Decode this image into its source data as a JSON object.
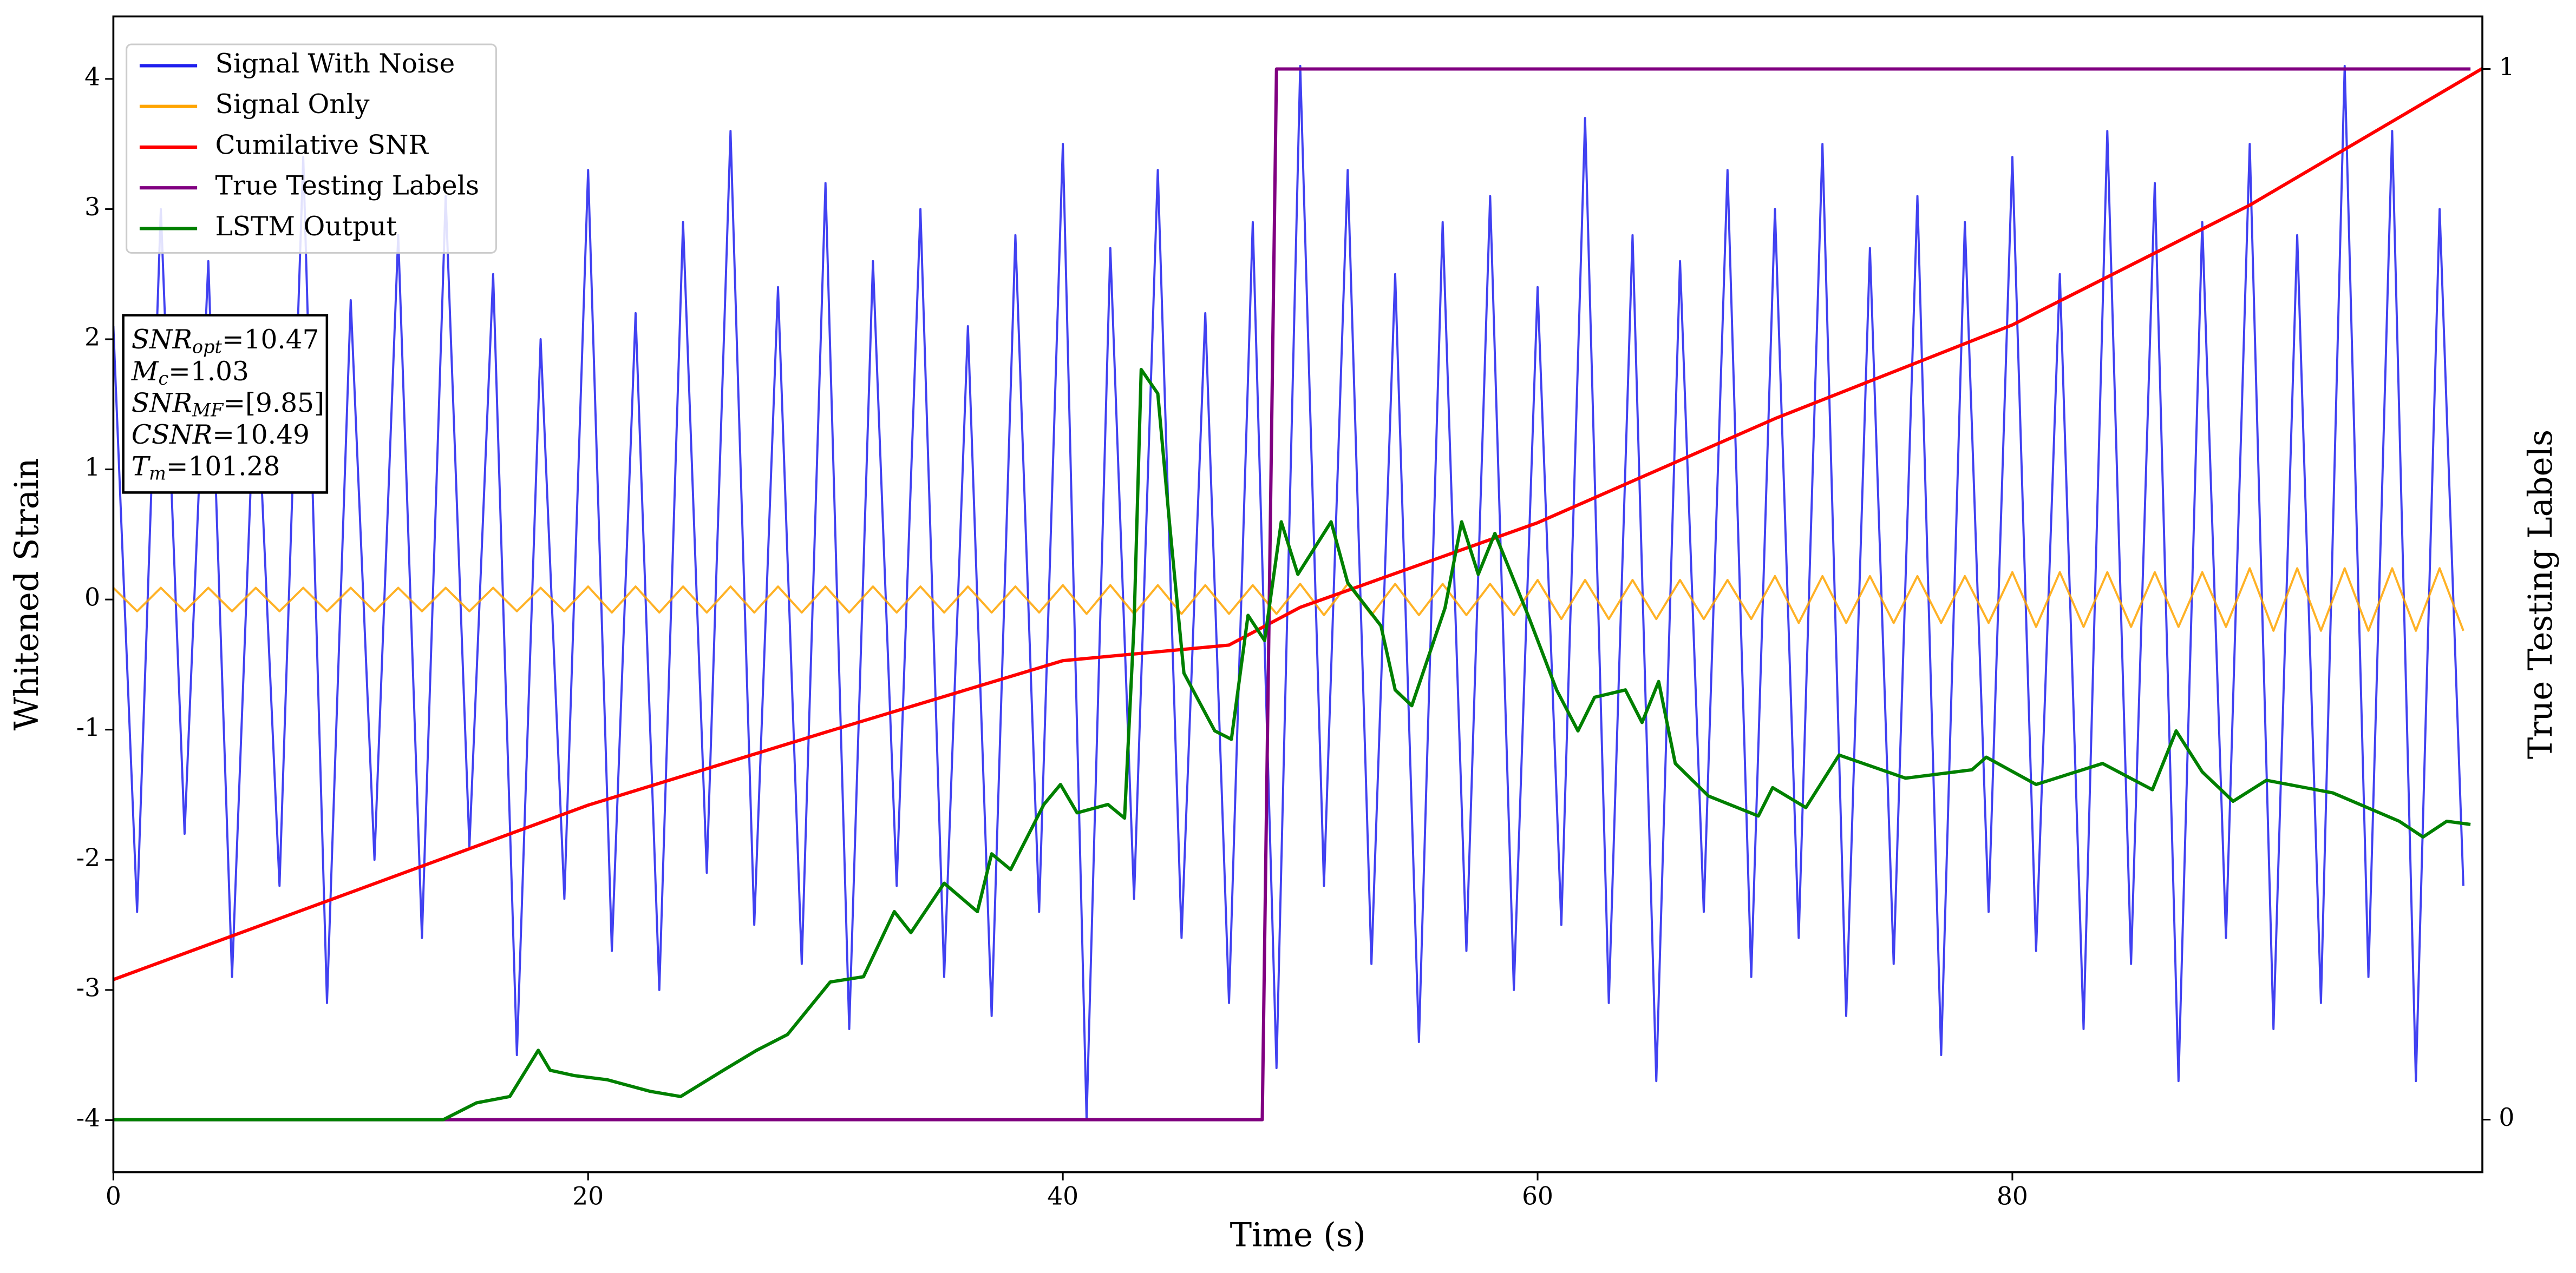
{
  "chart_data": {
    "type": "line",
    "x_label": "Time (s)",
    "y_label": "Whitened Strain",
    "y2_label": "True Testing Labels",
    "xlim": [
      0,
      99.8
    ],
    "ylim": [
      -4.4,
      4.48
    ],
    "y2lim": [
      -0.05,
      1.05
    ],
    "xticks": [
      0,
      20,
      40,
      60,
      80
    ],
    "yticks": [
      -4,
      -3,
      -2,
      -1,
      0,
      1,
      2,
      3,
      4
    ],
    "y2ticks": [
      0,
      1
    ],
    "legend": "upper left",
    "grid": false,
    "x": [
      0,
      1,
      2,
      3,
      4,
      5,
      6,
      7,
      8,
      9,
      10,
      11,
      12,
      13,
      14,
      15,
      16,
      17,
      18,
      19,
      20,
      21,
      22,
      23,
      24,
      25,
      26,
      27,
      28,
      29,
      30,
      31,
      32,
      33,
      34,
      35,
      36,
      37,
      38,
      39,
      40,
      41,
      42,
      43,
      44,
      45,
      46,
      47,
      48,
      49,
      50,
      51,
      52,
      53,
      54,
      55,
      56,
      57,
      58,
      59,
      60,
      61,
      62,
      63,
      64,
      65,
      66,
      67,
      68,
      69,
      70,
      71,
      72,
      73,
      74,
      75,
      76,
      77,
      78,
      79,
      80,
      81,
      82,
      83,
      84,
      85,
      86,
      87,
      88,
      89,
      90,
      91,
      92,
      93,
      94,
      95,
      96,
      97,
      98,
      99
    ],
    "series": [
      {
        "name": "Signal With Noise",
        "color": "#2020ee",
        "values": [
          2.1,
          -2.4,
          3.0,
          -1.8,
          2.6,
          -2.9,
          1.9,
          -2.2,
          3.4,
          -3.1,
          2.3,
          -2.0,
          2.8,
          -2.6,
          3.1,
          -1.9,
          2.5,
          -3.5,
          2.0,
          -2.3,
          3.3,
          -2.7,
          2.2,
          -3.0,
          2.9,
          -2.1,
          3.6,
          -2.5,
          2.4,
          -2.8,
          3.2,
          -3.3,
          2.6,
          -2.2,
          3.0,
          -2.9,
          2.1,
          -3.2,
          2.8,
          -2.4,
          3.5,
          -4.0,
          2.7,
          -2.3,
          3.3,
          -2.6,
          2.2,
          -3.1,
          2.9,
          -3.6,
          4.1,
          -2.2,
          3.3,
          -2.8,
          2.5,
          -3.4,
          2.9,
          -2.7,
          3.1,
          -3.0,
          2.4,
          -2.5,
          3.7,
          -3.1,
          2.8,
          -3.7,
          2.6,
          -2.4,
          3.3,
          -2.9,
          3.0,
          -2.6,
          3.5,
          -3.2,
          2.7,
          -2.8,
          3.1,
          -3.5,
          2.9,
          -2.4,
          3.4,
          -2.7,
          2.5,
          -3.3,
          3.6,
          -2.8,
          3.2,
          -3.7,
          2.9,
          -2.6,
          3.5,
          -3.3,
          2.8,
          -3.1,
          4.1,
          -2.9,
          3.6,
          -3.7,
          3.0,
          -2.2
        ]
      },
      {
        "name": "Signal Only",
        "color": "#ffa500",
        "values": [
          0.09,
          -0.09,
          0.09,
          -0.09,
          0.09,
          -0.09,
          0.09,
          -0.09,
          0.09,
          -0.09,
          0.09,
          -0.09,
          0.09,
          -0.09,
          0.09,
          -0.09,
          0.09,
          -0.09,
          0.09,
          -0.09,
          0.1,
          -0.1,
          0.1,
          -0.1,
          0.1,
          -0.1,
          0.1,
          -0.1,
          0.1,
          -0.1,
          0.1,
          -0.1,
          0.1,
          -0.1,
          0.1,
          -0.1,
          0.1,
          -0.1,
          0.1,
          -0.1,
          0.11,
          -0.11,
          0.11,
          -0.11,
          0.11,
          -0.11,
          0.11,
          -0.11,
          0.11,
          -0.11,
          0.12,
          -0.12,
          0.12,
          -0.12,
          0.12,
          -0.12,
          0.12,
          -0.12,
          0.12,
          -0.12,
          0.15,
          -0.15,
          0.15,
          -0.15,
          0.15,
          -0.15,
          0.15,
          -0.15,
          0.15,
          -0.15,
          0.18,
          -0.18,
          0.18,
          -0.18,
          0.18,
          -0.18,
          0.18,
          -0.18,
          0.18,
          -0.18,
          0.21,
          -0.21,
          0.21,
          -0.21,
          0.21,
          -0.21,
          0.21,
          -0.21,
          0.21,
          -0.21,
          0.24,
          -0.24,
          0.24,
          -0.24,
          0.24,
          -0.24,
          0.24,
          -0.24,
          0.24,
          -0.24
        ]
      },
      {
        "name": "Cumilative SNR",
        "color": "#ff0000",
        "x": [
          0,
          10,
          20,
          30,
          40,
          47,
          50,
          60,
          70,
          80,
          90,
          99.8
        ],
        "values": [
          -2.92,
          -2.25,
          -1.58,
          -1.02,
          -0.47,
          -0.35,
          -0.06,
          0.59,
          1.39,
          2.11,
          3.03,
          4.08
        ]
      },
      {
        "name": "True Testing Labels",
        "color": "#800080",
        "axis": "y2",
        "x": [
          0,
          48.4,
          49.0,
          99.3
        ],
        "values": [
          0,
          0,
          1,
          1
        ]
      },
      {
        "name": "LSTM Output",
        "color": "#008000",
        "axis": "y2",
        "x": [
          0,
          13.9,
          15.3,
          16.7,
          17.9,
          18.4,
          19.4,
          20.8,
          22.6,
          23.9,
          25.7,
          27.1,
          28.4,
          30.2,
          31.6,
          32.9,
          33.6,
          35.0,
          36.4,
          37.0,
          37.8,
          39.2,
          39.9,
          40.6,
          41.9,
          42.6,
          43.0,
          43.3,
          44.0,
          44.5,
          45.1,
          46.4,
          47.1,
          47.8,
          48.5,
          49.2,
          49.9,
          51.3,
          52.0,
          53.4,
          54.0,
          54.7,
          56.1,
          56.8,
          57.5,
          58.2,
          59.6,
          60.8,
          61.7,
          62.4,
          63.7,
          64.4,
          65.1,
          65.8,
          67.2,
          69.3,
          69.9,
          71.3,
          72.7,
          75.5,
          78.3,
          78.9,
          81.0,
          83.8,
          85.9,
          86.9,
          88.0,
          89.3,
          90.7,
          93.5,
          96.3,
          97.3,
          98.3,
          99.3
        ],
        "values": [
          0,
          0,
          0.016,
          0.022,
          0.066,
          0.047,
          0.042,
          0.038,
          0.027,
          0.022,
          0.047,
          0.066,
          0.081,
          0.131,
          0.136,
          0.198,
          0.178,
          0.225,
          0.198,
          0.253,
          0.238,
          0.3,
          0.319,
          0.292,
          0.3,
          0.287,
          0.472,
          0.714,
          0.691,
          0.566,
          0.425,
          0.37,
          0.362,
          0.48,
          0.456,
          0.569,
          0.519,
          0.569,
          0.511,
          0.47,
          0.409,
          0.394,
          0.487,
          0.569,
          0.519,
          0.558,
          0.48,
          0.409,
          0.37,
          0.402,
          0.409,
          0.378,
          0.417,
          0.339,
          0.308,
          0.289,
          0.316,
          0.297,
          0.347,
          0.325,
          0.333,
          0.345,
          0.319,
          0.339,
          0.314,
          0.37,
          0.331,
          0.303,
          0.323,
          0.311,
          0.284,
          0.269,
          0.284,
          0.281
        ]
      }
    ],
    "annotation": [
      {
        "main": "SNR",
        "sub": "opt",
        "rest": "=10.47"
      },
      {
        "main": "M",
        "sub": "c",
        "rest": "=1.03"
      },
      {
        "main": "SNR",
        "sub": "MF",
        "rest": "=[9.85]"
      },
      {
        "main": "CSNR",
        "rest": "=10.49"
      },
      {
        "main": "T",
        "sub": "m",
        "rest": "=101.28"
      }
    ]
  }
}
